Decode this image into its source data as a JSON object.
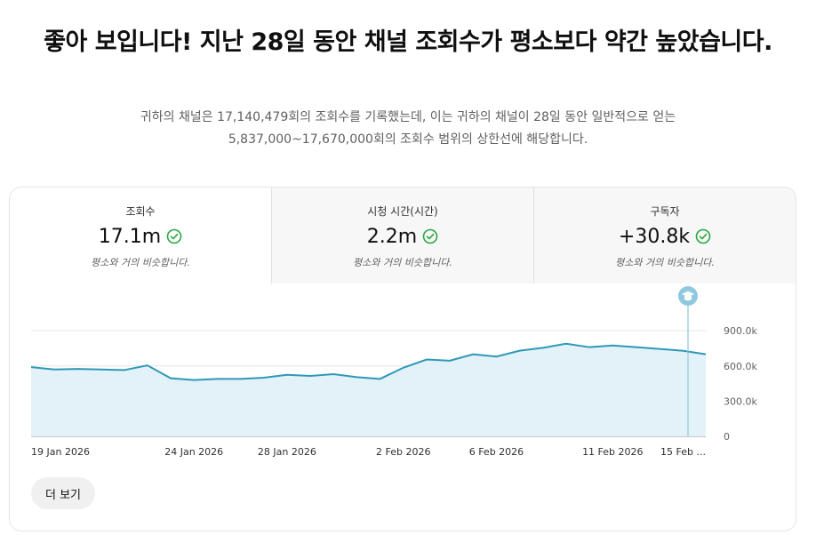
{
  "headline": "좋아 보입니다! 지난 28일 동안 채널 조회수가 평소보다 약간 높았습니다.",
  "subtitle_line1": "귀하의 채널은 17,140,479회의 조회수를 기록했는데, 이는 귀하의 채널이 28일 동안 일반적으로 얻는",
  "subtitle_line2": "5,837,000~17,670,000회의 조회수 범위의 상한선에 해당합니다.",
  "metrics": [
    {
      "label": "조회수",
      "value": "17.1m",
      "note": "평소와 거의 비슷합니다.",
      "icon": "check-circle-icon",
      "active": true
    },
    {
      "label": "시청 시간(시간)",
      "value": "2.2m",
      "note": "평소와 거의 비슷합니다.",
      "icon": "check-circle-icon",
      "active": false
    },
    {
      "label": "구독자",
      "value": "+30.8k",
      "note": "평소와 거의 비슷합니다.",
      "icon": "check-circle-icon",
      "active": false
    }
  ],
  "more_button": "더 보기",
  "colors": {
    "line": "#2e98b8",
    "fill": "#e3f2f8",
    "check": "#2ba640",
    "marker": "#8ec9dd"
  },
  "chart_data": {
    "type": "area",
    "x": [
      "17 Jan 2026",
      "18 Jan 2026",
      "19 Jan 2026",
      "20 Jan 2026",
      "21 Jan 2026",
      "22 Jan 2026",
      "23 Jan 2026",
      "24 Jan 2026",
      "25 Jan 2026",
      "26 Jan 2026",
      "27 Jan 2026",
      "28 Jan 2026",
      "29 Jan 2026",
      "30 Jan 2026",
      "31 Jan 2026",
      "1 Feb 2026",
      "2 Feb 2026",
      "3 Feb 2026",
      "4 Feb 2026",
      "5 Feb 2026",
      "6 Feb 2026",
      "7 Feb 2026",
      "8 Feb 2026",
      "9 Feb 2026",
      "10 Feb 2026",
      "11 Feb 2026",
      "12 Feb 2026",
      "13 Feb 2026",
      "14 Feb 2026",
      "15 Feb 2026"
    ],
    "values": [
      590000,
      570000,
      575000,
      570000,
      565000,
      605000,
      495000,
      480000,
      490000,
      490000,
      500000,
      525000,
      515000,
      530000,
      505000,
      490000,
      585000,
      655000,
      645000,
      700000,
      680000,
      730000,
      755000,
      790000,
      760000,
      775000,
      760000,
      745000,
      730000,
      700000
    ],
    "xticks": [
      "19 Jan 2026",
      "24 Jan 2026",
      "28 Jan 2026",
      "2 Feb 2026",
      "6 Feb 2026",
      "11 Feb 2026",
      "15 Feb ..."
    ],
    "xtick_positions": [
      2,
      7,
      11,
      16,
      20,
      25,
      29
    ],
    "yticks": [
      "0",
      "300.0k",
      "600.0k",
      "900.0k"
    ],
    "ylim": [
      0,
      1000000
    ],
    "marker_index": 29,
    "marker_icon": "graduation-cap-icon",
    "grid": true
  }
}
